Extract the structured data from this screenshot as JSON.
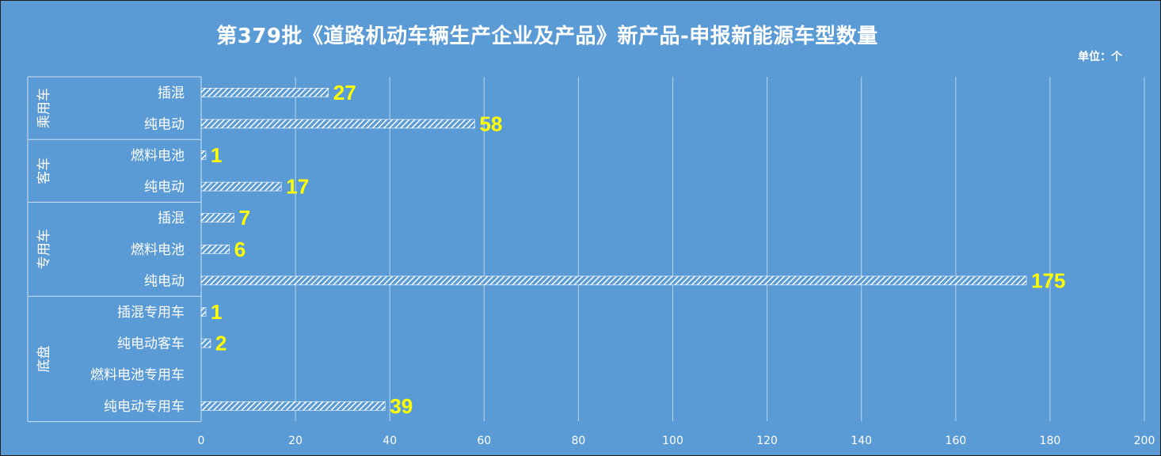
{
  "title": "第379批《道路机动车辆生产企业及产品》新产品-申报新能源车型数量",
  "unit": "单位：个",
  "chart_data": {
    "type": "bar",
    "orientation": "horizontal",
    "title": "第379批《道路机动车辆生产企业及产品》新产品-申报新能源车型数量",
    "groups": [
      {
        "name": "乘用车",
        "items": [
          {
            "label": "插混",
            "value": 27
          },
          {
            "label": "纯电动",
            "value": 58
          }
        ]
      },
      {
        "name": "客车",
        "items": [
          {
            "label": "燃料电池",
            "value": 1
          },
          {
            "label": "纯电动",
            "value": 17
          }
        ]
      },
      {
        "name": "专用车",
        "items": [
          {
            "label": "插混",
            "value": 7
          },
          {
            "label": "燃料电池",
            "value": 6
          },
          {
            "label": "纯电动",
            "value": 175
          }
        ]
      },
      {
        "name": "底盘",
        "items": [
          {
            "label": "插混专用车",
            "value": 1
          },
          {
            "label": "纯电动客车",
            "value": 2
          },
          {
            "label": "燃料电池专用车",
            "value": null
          },
          {
            "label": "纯电动专用车",
            "value": 39
          }
        ]
      }
    ],
    "xlim": [
      0,
      200
    ],
    "xticks": [
      0,
      20,
      40,
      60,
      80,
      100,
      120,
      140,
      160,
      180,
      200
    ],
    "grid": true,
    "legend": "none",
    "colors": {
      "background": "#5b9bd5",
      "bar_pattern": "#ffffff",
      "value_label": "#ffff00",
      "text": "#ffffff"
    }
  }
}
